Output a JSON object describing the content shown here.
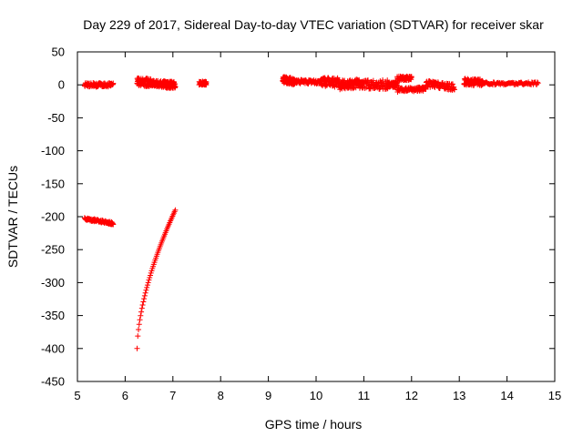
{
  "chart_data": {
    "type": "scatter",
    "title": "Day 229 of 2017, Sidereal Day-to-day VTEC variation (SDTVAR) for receiver skar",
    "xlabel": "GPS time / hours",
    "ylabel": "SDTVAR / TECUs",
    "xlim": [
      5,
      15
    ],
    "ylim": [
      -450,
      50
    ],
    "xticks": [
      5,
      6,
      7,
      8,
      9,
      10,
      11,
      12,
      13,
      14,
      15
    ],
    "yticks": [
      50,
      0,
      -50,
      -100,
      -150,
      -200,
      -250,
      -300,
      -350,
      -400,
      -450
    ],
    "grid": false,
    "marker": "plus",
    "series_color": "#ff0000",
    "segments": [
      {
        "x0": 5.15,
        "x1": 5.75,
        "y0": 0,
        "y1": 0,
        "jitter": 3,
        "density": 90
      },
      {
        "x0": 6.25,
        "x1": 6.55,
        "y0": 5,
        "y1": 3,
        "jitter": 6,
        "density": 80
      },
      {
        "x0": 6.55,
        "x1": 6.85,
        "y0": 2,
        "y1": 1,
        "jitter": 5,
        "density": 80
      },
      {
        "x0": 6.85,
        "x1": 7.05,
        "y0": 0,
        "y1": 0,
        "jitter": 5,
        "density": 80
      },
      {
        "x0": 7.55,
        "x1": 7.7,
        "y0": 3,
        "y1": 3,
        "jitter": 3,
        "density": 60
      },
      {
        "x0": 9.3,
        "x1": 9.55,
        "y0": 8,
        "y1": 5,
        "jitter": 5,
        "density": 80
      },
      {
        "x0": 9.55,
        "x1": 10.1,
        "y0": 5,
        "y1": 4,
        "jitter": 3,
        "density": 80
      },
      {
        "x0": 10.1,
        "x1": 10.5,
        "y0": 5,
        "y1": 3,
        "jitter": 7,
        "density": 80
      },
      {
        "x0": 10.5,
        "x1": 10.9,
        "y0": 0,
        "y1": 2,
        "jitter": 7,
        "density": 80
      },
      {
        "x0": 10.9,
        "x1": 11.5,
        "y0": 1,
        "y1": 0,
        "jitter": 7,
        "density": 80
      },
      {
        "x0": 11.5,
        "x1": 11.7,
        "y0": 1,
        "y1": 0,
        "jitter": 4,
        "density": 60
      },
      {
        "x0": 11.7,
        "x1": 12.0,
        "y0": 10,
        "y1": 10,
        "jitter": 3,
        "density": 60
      },
      {
        "x0": 11.7,
        "x1": 12.3,
        "y0": -8,
        "y1": -6,
        "jitter": 3,
        "density": 80
      },
      {
        "x0": 12.3,
        "x1": 12.9,
        "y0": 2,
        "y1": -4,
        "jitter": 5,
        "density": 80
      },
      {
        "x0": 13.1,
        "x1": 13.5,
        "y0": 5,
        "y1": 3,
        "jitter": 5,
        "density": 80
      },
      {
        "x0": 13.5,
        "x1": 14.65,
        "y0": 2,
        "y1": 2,
        "jitter": 2,
        "density": 80
      },
      {
        "x0": 5.15,
        "x1": 5.75,
        "y0": -203,
        "y1": -210,
        "jitter": 2,
        "density": 90
      },
      {
        "curve": true,
        "x0": 6.25,
        "x1": 7.05,
        "y0": -400,
        "y1": -190,
        "power": 0.6,
        "jitter": 0,
        "density": 55
      }
    ]
  }
}
